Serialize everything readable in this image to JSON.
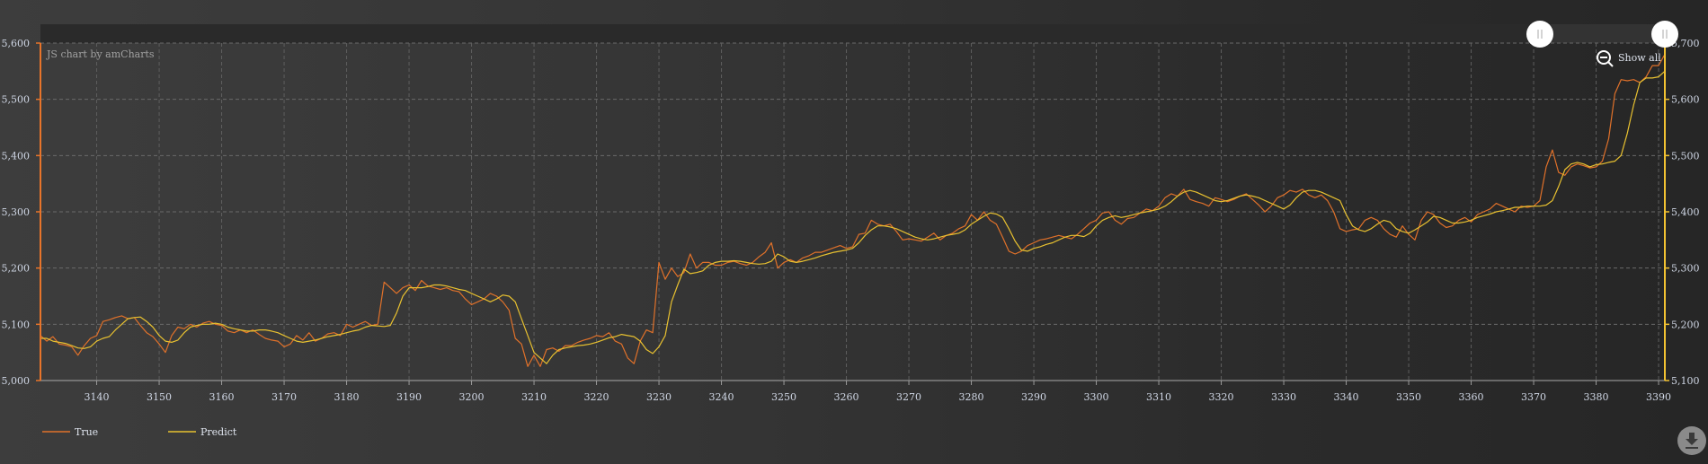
{
  "credit": "JS chart by amCharts",
  "show_all_label": "Show all",
  "icons": {
    "zoom_out": "magnifier-minus-icon",
    "grip": "scrollbar-grip-icon",
    "download": "download-icon"
  },
  "colors": {
    "true": "#e0712a",
    "predict": "#e8c130",
    "left_axis": "#e8742a",
    "right_axis": "#f2c232"
  },
  "chart_data": {
    "type": "line",
    "grid": true,
    "legend_position": "bottom-left",
    "x_range": [
      3131,
      3391
    ],
    "x_ticks": [
      "3140",
      "3150",
      "3160",
      "3170",
      "3180",
      "3190",
      "3200",
      "3210",
      "3220",
      "3230",
      "3240",
      "3250",
      "3260",
      "3270",
      "3280",
      "3290",
      "3300",
      "3310",
      "3320",
      "3330",
      "3340",
      "3350",
      "3360",
      "3370",
      "3380",
      "3390"
    ],
    "left_axis": {
      "range": [
        5000,
        5600
      ],
      "ticks": [
        "5,000",
        "5,100",
        "5,200",
        "5,300",
        "5,400",
        "5,500",
        "5,600"
      ]
    },
    "right_axis": {
      "range": [
        5100,
        5700
      ],
      "ticks": [
        "5,100",
        "5,200",
        "5,300",
        "5,400",
        "5,500",
        "5,600",
        "5,700"
      ]
    },
    "x_start": 3131,
    "x_step": 1,
    "series": [
      {
        "name": "True",
        "axis": "left",
        "values": [
          5080,
          5070,
          5078,
          5065,
          5063,
          5060,
          5045,
          5062,
          5075,
          5080,
          5105,
          5108,
          5112,
          5115,
          5110,
          5112,
          5098,
          5085,
          5078,
          5065,
          5050,
          5080,
          5095,
          5092,
          5100,
          5095,
          5102,
          5105,
          5100,
          5098,
          5088,
          5085,
          5090,
          5085,
          5090,
          5082,
          5075,
          5072,
          5070,
          5060,
          5065,
          5080,
          5072,
          5085,
          5070,
          5075,
          5083,
          5085,
          5080,
          5100,
          5095,
          5100,
          5105,
          5098,
          5100,
          5175,
          5165,
          5155,
          5165,
          5170,
          5160,
          5178,
          5168,
          5165,
          5162,
          5165,
          5160,
          5158,
          5145,
          5135,
          5140,
          5145,
          5155,
          5150,
          5140,
          5125,
          5075,
          5065,
          5025,
          5045,
          5025,
          5055,
          5058,
          5052,
          5062,
          5062,
          5068,
          5072,
          5075,
          5080,
          5078,
          5085,
          5070,
          5065,
          5040,
          5030,
          5070,
          5090,
          5085,
          5210,
          5180,
          5200,
          5185,
          5192,
          5225,
          5200,
          5210,
          5210,
          5205,
          5205,
          5210,
          5212,
          5208,
          5205,
          5210,
          5220,
          5228,
          5245,
          5200,
          5210,
          5215,
          5210,
          5218,
          5222,
          5228,
          5228,
          5232,
          5236,
          5240,
          5235,
          5238,
          5260,
          5262,
          5285,
          5278,
          5275,
          5278,
          5265,
          5250,
          5252,
          5250,
          5248,
          5255,
          5262,
          5250,
          5258,
          5262,
          5270,
          5275,
          5295,
          5285,
          5300,
          5285,
          5278,
          5255,
          5230,
          5225,
          5230,
          5240,
          5245,
          5250,
          5252,
          5255,
          5258,
          5255,
          5252,
          5260,
          5270,
          5280,
          5285,
          5298,
          5300,
          5285,
          5278,
          5288,
          5290,
          5298,
          5305,
          5302,
          5310,
          5325,
          5332,
          5328,
          5340,
          5322,
          5318,
          5315,
          5310,
          5325,
          5322,
          5318,
          5322,
          5328,
          5332,
          5322,
          5312,
          5300,
          5310,
          5325,
          5330,
          5338,
          5335,
          5340,
          5330,
          5325,
          5330,
          5320,
          5300,
          5270,
          5265,
          5268,
          5270,
          5285,
          5290,
          5285,
          5270,
          5260,
          5255,
          5275,
          5260,
          5250,
          5285,
          5300,
          5295,
          5280,
          5272,
          5275,
          5285,
          5290,
          5282,
          5295,
          5300,
          5305,
          5315,
          5310,
          5305,
          5300,
          5310,
          5308,
          5310,
          5320,
          5380,
          5410,
          5370,
          5365,
          5380,
          5385,
          5382,
          5378,
          5380,
          5390,
          5430,
          5510,
          5535,
          5533,
          5535,
          5530,
          5540,
          5560,
          5560,
          5580
        ]
      },
      {
        "name": "Predict",
        "axis": "right",
        "values": [
          5175,
          5175,
          5170,
          5168,
          5166,
          5162,
          5158,
          5157,
          5160,
          5170,
          5175,
          5178,
          5190,
          5200,
          5210,
          5212,
          5213,
          5205,
          5195,
          5180,
          5170,
          5168,
          5172,
          5185,
          5195,
          5198,
          5200,
          5200,
          5202,
          5200,
          5195,
          5192,
          5190,
          5188,
          5188,
          5190,
          5190,
          5188,
          5185,
          5180,
          5175,
          5170,
          5168,
          5170,
          5172,
          5175,
          5178,
          5180,
          5182,
          5185,
          5188,
          5190,
          5195,
          5198,
          5197,
          5196,
          5198,
          5220,
          5250,
          5265,
          5265,
          5265,
          5267,
          5270,
          5270,
          5268,
          5265,
          5262,
          5260,
          5255,
          5250,
          5245,
          5240,
          5245,
          5252,
          5250,
          5240,
          5210,
          5180,
          5150,
          5140,
          5130,
          5145,
          5155,
          5158,
          5160,
          5162,
          5163,
          5165,
          5168,
          5172,
          5176,
          5178,
          5182,
          5180,
          5178,
          5170,
          5155,
          5148,
          5160,
          5180,
          5240,
          5270,
          5298,
          5290,
          5292,
          5295,
          5305,
          5310,
          5312,
          5312,
          5313,
          5312,
          5310,
          5308,
          5307,
          5308,
          5312,
          5325,
          5320,
          5312,
          5310,
          5312,
          5315,
          5318,
          5322,
          5325,
          5328,
          5330,
          5332,
          5335,
          5345,
          5358,
          5368,
          5375,
          5375,
          5373,
          5370,
          5365,
          5360,
          5355,
          5352,
          5350,
          5352,
          5355,
          5358,
          5360,
          5362,
          5368,
          5378,
          5385,
          5392,
          5398,
          5396,
          5390,
          5370,
          5348,
          5332,
          5330,
          5335,
          5338,
          5342,
          5345,
          5350,
          5355,
          5358,
          5358,
          5356,
          5362,
          5375,
          5385,
          5390,
          5393,
          5390,
          5392,
          5395,
          5398,
          5400,
          5402,
          5405,
          5410,
          5418,
          5428,
          5435,
          5438,
          5435,
          5430,
          5425,
          5420,
          5418,
          5420,
          5424,
          5428,
          5430,
          5428,
          5425,
          5420,
          5415,
          5410,
          5405,
          5412,
          5425,
          5435,
          5438,
          5438,
          5435,
          5430,
          5425,
          5420,
          5395,
          5375,
          5368,
          5365,
          5370,
          5378,
          5385,
          5382,
          5370,
          5365,
          5362,
          5368,
          5375,
          5382,
          5392,
          5390,
          5385,
          5380,
          5380,
          5382,
          5385,
          5390,
          5393,
          5396,
          5400,
          5402,
          5405,
          5408,
          5408,
          5410,
          5410,
          5410,
          5412,
          5420,
          5445,
          5475,
          5485,
          5488,
          5485,
          5480,
          5484,
          5485,
          5488,
          5490,
          5500,
          5540,
          5590,
          5630,
          5638,
          5638,
          5640,
          5650
        ]
      }
    ]
  }
}
